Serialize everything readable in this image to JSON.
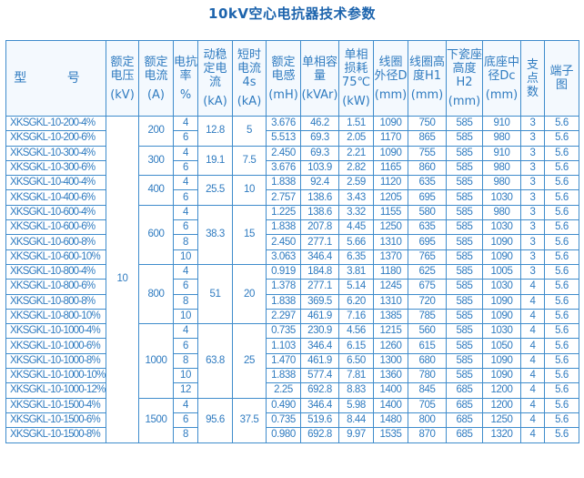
{
  "title": "10kV空心电抗器技术参数",
  "colors": {
    "text": "#2f7bc0",
    "border": "#3f8ccc",
    "title": "#1d64ad"
  },
  "headers": [
    {
      "name": "型 号",
      "unit": ""
    },
    {
      "name": "额定电压",
      "unit": "(kV)"
    },
    {
      "name": "额定电流",
      "unit": "(A)"
    },
    {
      "name": "电抗率",
      "unit": "%"
    },
    {
      "name": "动稳定电流",
      "unit": "(kA)"
    },
    {
      "name": "短时电流4s",
      "unit": "(kA)"
    },
    {
      "name": "额定电感",
      "unit": "(mH)"
    },
    {
      "name": "单相容量",
      "unit": "(kVAr)"
    },
    {
      "name": "单相损耗75℃",
      "unit": "(kW)"
    },
    {
      "name": "线圈外径D",
      "unit": "(mm)"
    },
    {
      "name": "线圈高度H1",
      "unit": "(mm)"
    },
    {
      "name": "下瓷座高度H2",
      "unit": "(mm)"
    },
    {
      "name": "底座中径Dc",
      "unit": "(mm)"
    },
    {
      "name": "支点数",
      "unit": ""
    },
    {
      "name": "端子图",
      "unit": ""
    }
  ],
  "voltage": "10",
  "groups": [
    {
      "current": "200",
      "dynamic": "12.8",
      "short": "5",
      "rows": [
        [
          "XKSGKL-10-200-4%",
          "4",
          "3.676",
          "46.2",
          "1.51",
          "1090",
          "750",
          "585",
          "910",
          "3",
          "5.6"
        ],
        [
          "XKSGKL-10-200-6%",
          "6",
          "5.513",
          "69.3",
          "2.05",
          "1170",
          "865",
          "585",
          "980",
          "3",
          "5.6"
        ]
      ]
    },
    {
      "current": "300",
      "dynamic": "19.1",
      "short": "7.5",
      "rows": [
        [
          "XKSGKL-10-300-4%",
          "4",
          "2.450",
          "69.3",
          "2.21",
          "1090",
          "755",
          "585",
          "910",
          "3",
          "5.6"
        ],
        [
          "XKSGKL-10-300-6%",
          "6",
          "3.676",
          "103.9",
          "2.82",
          "1165",
          "860",
          "585",
          "980",
          "3",
          "5.6"
        ]
      ]
    },
    {
      "current": "400",
      "dynamic": "25.5",
      "short": "10",
      "rows": [
        [
          "XKSGKL-10-400-4%",
          "4",
          "1.838",
          "92.4",
          "2.59",
          "1120",
          "635",
          "585",
          "980",
          "3",
          "5.6"
        ],
        [
          "XKSGKL-10-400-6%",
          "6",
          "2.757",
          "138.6",
          "3.43",
          "1205",
          "695",
          "585",
          "1030",
          "3",
          "5.6"
        ]
      ]
    },
    {
      "current": "600",
      "dynamic": "38.3",
      "short": "15",
      "rows": [
        [
          "XKSGKL-10-600-4%",
          "4",
          "1.225",
          "138.6",
          "3.32",
          "1155",
          "580",
          "585",
          "980",
          "3",
          "5.6"
        ],
        [
          "XKSGKL-10-600-6%",
          "6",
          "1.838",
          "207.8",
          "4.45",
          "1250",
          "635",
          "585",
          "1030",
          "3",
          "5.6"
        ],
        [
          "XKSGKL-10-600-8%",
          "8",
          "2.450",
          "277.1",
          "5.66",
          "1310",
          "695",
          "585",
          "1090",
          "3",
          "5.6"
        ],
        [
          "XKSGKL-10-600-10%",
          "10",
          "3.063",
          "346.4",
          "6.35",
          "1370",
          "765",
          "585",
          "1090",
          "3",
          "5.6"
        ]
      ]
    },
    {
      "current": "800",
      "dynamic": "51",
      "short": "20",
      "rows": [
        [
          "XKSGKL-10-800-4%",
          "4",
          "0.919",
          "184.8",
          "3.81",
          "1180",
          "625",
          "585",
          "1005",
          "3",
          "5.6"
        ],
        [
          "XKSGKL-10-800-6%",
          "6",
          "1.378",
          "277.1",
          "5.14",
          "1245",
          "675",
          "585",
          "1030",
          "4",
          "5.6"
        ],
        [
          "XKSGKL-10-800-8%",
          "8",
          "1.838",
          "369.5",
          "6.20",
          "1310",
          "720",
          "585",
          "1090",
          "4",
          "5.6"
        ],
        [
          "XKSGKL-10-800-10%",
          "10",
          "2.297",
          "461.9",
          "7.16",
          "1385",
          "785",
          "585",
          "1090",
          "4",
          "5.6"
        ]
      ]
    },
    {
      "current": "1000",
      "dynamic": "63.8",
      "short": "25",
      "rows": [
        [
          "XKSGKL-10-1000-4%",
          "4",
          "0.735",
          "230.9",
          "4.56",
          "1215",
          "560",
          "585",
          "1030",
          "4",
          "5.6"
        ],
        [
          "XKSGKL-10-1000-6%",
          "6",
          "1.103",
          "346.4",
          "6.15",
          "1260",
          "615",
          "585",
          "1050",
          "4",
          "5.6"
        ],
        [
          "XKSGKL-10-1000-8%",
          "8",
          "1.470",
          "461.9",
          "6.50",
          "1300",
          "680",
          "585",
          "1090",
          "4",
          "5.6"
        ],
        [
          "XKSGKL-10-1000-10%",
          "10",
          "1.838",
          "577.4",
          "7.81",
          "1360",
          "780",
          "585",
          "1090",
          "4",
          "5.6"
        ],
        [
          "XKSGKL-10-1000-12%",
          "12",
          "2.25",
          "692.8",
          "8.83",
          "1400",
          "845",
          "685",
          "1200",
          "4",
          "5.6"
        ]
      ]
    },
    {
      "current": "1500",
      "dynamic": "95.6",
      "short": "37.5",
      "rows": [
        [
          "XKSGKL-10-1500-4%",
          "4",
          "0.490",
          "346.4",
          "5.98",
          "1400",
          "705",
          "685",
          "1200",
          "4",
          "5.6"
        ],
        [
          "XKSGKL-10-1500-6%",
          "6",
          "0.735",
          "519.6",
          "8.44",
          "1480",
          "800",
          "685",
          "1250",
          "4",
          "5.6"
        ],
        [
          "XKSGKL-10-1500-8%",
          "8",
          "0.980",
          "692.8",
          "9.97",
          "1535",
          "870",
          "685",
          "1320",
          "4",
          "5.6"
        ]
      ]
    }
  ]
}
